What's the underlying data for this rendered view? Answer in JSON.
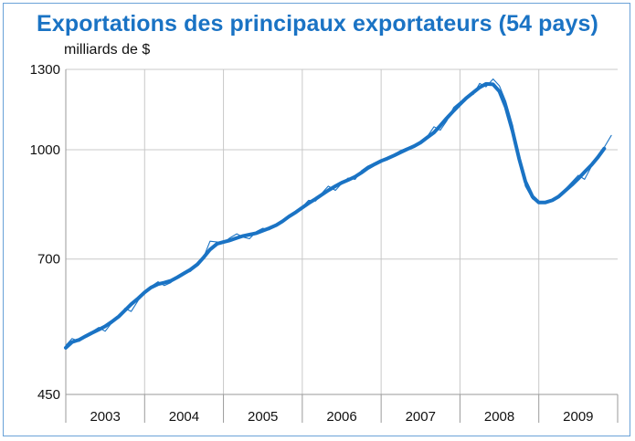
{
  "chart_data": {
    "type": "line",
    "title": "Exportations des principaux exportateurs (54 pays)",
    "ylabel": "milliards de $",
    "xlabel": "",
    "y_scale": "log",
    "ylim": [
      450,
      1300
    ],
    "yticks": [
      1300,
      1000,
      700,
      450
    ],
    "x_categories": [
      "2003",
      "2004",
      "2005",
      "2006",
      "2007",
      "2008",
      "2009"
    ],
    "grid": true,
    "legend": "none",
    "colors": {
      "line": "#1a73c4",
      "grid": "#c8c8c8",
      "frame": "#6aa2d8",
      "title": "#1a73c4"
    },
    "series": [
      {
        "style": "monthly-thin",
        "x": [
          2003.0,
          2003.08,
          2003.17,
          2003.25,
          2003.33,
          2003.42,
          2003.5,
          2003.58,
          2003.67,
          2003.75,
          2003.83,
          2003.92,
          2004.0,
          2004.08,
          2004.17,
          2004.25,
          2004.33,
          2004.42,
          2004.5,
          2004.58,
          2004.67,
          2004.75,
          2004.83,
          2004.92,
          2005.0,
          2005.08,
          2005.17,
          2005.25,
          2005.33,
          2005.42,
          2005.5,
          2005.58,
          2005.67,
          2005.75,
          2005.83,
          2005.92,
          2006.0,
          2006.08,
          2006.17,
          2006.25,
          2006.33,
          2006.42,
          2006.5,
          2006.58,
          2006.67,
          2006.75,
          2006.83,
          2006.92,
          2007.0,
          2007.08,
          2007.17,
          2007.25,
          2007.33,
          2007.42,
          2007.5,
          2007.58,
          2007.67,
          2007.75,
          2007.83,
          2007.92,
          2008.0,
          2008.08,
          2008.17,
          2008.25,
          2008.33,
          2008.42,
          2008.5,
          2008.58,
          2008.67,
          2008.75,
          2008.83,
          2008.92,
          2009.0,
          2009.08,
          2009.17,
          2009.25,
          2009.33,
          2009.42,
          2009.5,
          2009.58,
          2009.67,
          2009.75,
          2009.83,
          2009.92
        ],
        "values": [
          528,
          540,
          535,
          545,
          552,
          560,
          553,
          568,
          578,
          596,
          590,
          612,
          626,
          640,
          650,
          642,
          648,
          662,
          668,
          672,
          688,
          705,
          742,
          740,
          738,
          750,
          760,
          752,
          748,
          766,
          774,
          770,
          782,
          792,
          804,
          818,
          830,
          848,
          846,
          868,
          888,
          876,
          896,
          912,
          908,
          934,
          948,
          958,
          966,
          972,
          986,
          998,
          1006,
          1012,
          1028,
          1042,
          1078,
          1066,
          1098,
          1148,
          1168,
          1188,
          1198,
          1242,
          1228,
          1260,
          1232,
          1172,
          1082,
          972,
          888,
          852,
          840,
          842,
          848,
          858,
          878,
          900,
          920,
          908,
          948,
          978,
          1008,
          1048
        ]
      },
      {
        "style": "smoothed-thick",
        "x": [
          2003.0,
          2003.08,
          2003.17,
          2003.25,
          2003.33,
          2003.42,
          2003.5,
          2003.58,
          2003.67,
          2003.75,
          2003.83,
          2003.92,
          2004.0,
          2004.08,
          2004.17,
          2004.25,
          2004.33,
          2004.42,
          2004.5,
          2004.58,
          2004.67,
          2004.75,
          2004.83,
          2004.92,
          2005.0,
          2005.08,
          2005.17,
          2005.25,
          2005.33,
          2005.42,
          2005.5,
          2005.58,
          2005.67,
          2005.75,
          2005.83,
          2005.92,
          2006.0,
          2006.08,
          2006.17,
          2006.25,
          2006.33,
          2006.42,
          2006.5,
          2006.58,
          2006.67,
          2006.75,
          2006.83,
          2006.92,
          2007.0,
          2007.08,
          2007.17,
          2007.25,
          2007.33,
          2007.42,
          2007.5,
          2007.58,
          2007.67,
          2007.75,
          2007.83,
          2007.92,
          2008.0,
          2008.08,
          2008.17,
          2008.25,
          2008.33,
          2008.42,
          2008.5,
          2008.58,
          2008.67,
          2008.75,
          2008.83,
          2008.92,
          2009.0,
          2009.08,
          2009.17,
          2009.25,
          2009.33,
          2009.42,
          2009.5,
          2009.58,
          2009.67,
          2009.75,
          2009.83
        ],
        "values": [
          524,
          534,
          538,
          544,
          550,
          556,
          562,
          570,
          580,
          592,
          604,
          616,
          628,
          638,
          645,
          648,
          652,
          660,
          668,
          676,
          688,
          704,
          722,
          736,
          740,
          744,
          750,
          755,
          758,
          762,
          768,
          774,
          782,
          792,
          804,
          816,
          828,
          840,
          852,
          864,
          876,
          888,
          898,
          906,
          916,
          928,
          942,
          954,
          964,
          972,
          982,
          992,
          1002,
          1012,
          1024,
          1040,
          1058,
          1082,
          1108,
          1136,
          1160,
          1184,
          1206,
          1226,
          1240,
          1238,
          1210,
          1150,
          1060,
          972,
          902,
          858,
          842,
          842,
          848,
          858,
          874,
          892,
          910,
          930,
          952,
          976,
          1004
        ]
      }
    ]
  }
}
